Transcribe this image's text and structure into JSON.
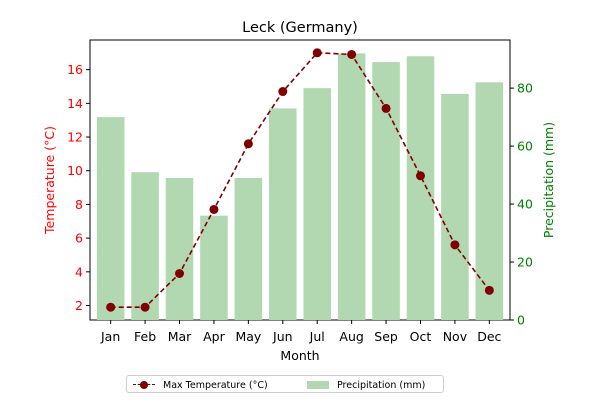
{
  "chart_data": {
    "type": "bar+line",
    "title": "Leck (Germany)",
    "xlabel": "Month",
    "categories": [
      "Jan",
      "Feb",
      "Mar",
      "Apr",
      "May",
      "Jun",
      "Jul",
      "Aug",
      "Sep",
      "Oct",
      "Nov",
      "Dec"
    ],
    "series": [
      {
        "name": "Max Temperature (°C)",
        "type": "line",
        "axis": "left",
        "color": "#800000",
        "values": [
          1.9,
          1.9,
          3.9,
          7.7,
          11.6,
          14.7,
          17.0,
          16.9,
          13.7,
          9.7,
          5.6,
          2.9
        ]
      },
      {
        "name": "Precipitation (mm)",
        "type": "bar",
        "axis": "right",
        "color": "#b2d8b2",
        "values": [
          70,
          51,
          49,
          36,
          49,
          73,
          80,
          92,
          89,
          91,
          78,
          82
        ]
      }
    ],
    "y_left": {
      "label": "Temperature (°C)",
      "color": "#ff0000",
      "ylim": [
        1.14,
        17.76
      ],
      "ticks": [
        2,
        4,
        6,
        8,
        10,
        12,
        14,
        16
      ]
    },
    "y_right": {
      "label": "Precipitation (mm)",
      "color": "#008000",
      "ylim": [
        0,
        96.6
      ],
      "ticks": [
        0,
        20,
        40,
        60,
        80
      ]
    },
    "grid": false,
    "legend_placement": "bottom-center"
  }
}
